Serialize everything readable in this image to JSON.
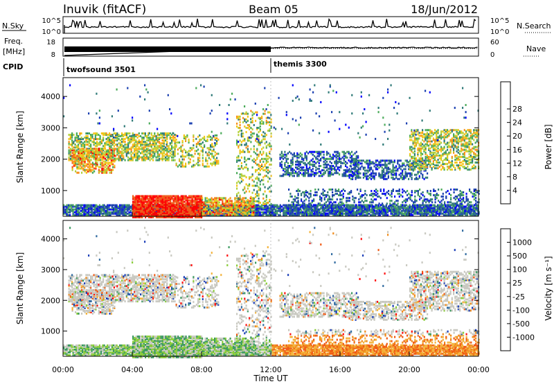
{
  "header": {
    "station": "Inuvik (fitACF)",
    "beam": "Beam 05",
    "date": "18/Jun/2012"
  },
  "status_panels": {
    "nsky_label": "N.Sky",
    "nsky_ticks": [
      "10^5",
      "10^0"
    ],
    "nsearch_label": "N.Search",
    "nsearch_ticks": [
      "10^5",
      "10^0"
    ],
    "freq_label_1": "Freq.",
    "freq_label_2": "[MHz]",
    "freq_ticks": [
      "18",
      "8"
    ],
    "nave_label": "Nave",
    "nave_ticks": [
      "60",
      "0"
    ],
    "cpid_label": "CPID",
    "cpid_programs": [
      {
        "name": "twofsound 3501",
        "start": "00:00"
      },
      {
        "name": "themis 3300",
        "start": "12:00"
      }
    ]
  },
  "chart_data": [
    {
      "type": "heatmap",
      "title": "",
      "ylabel": "Slant Range [km]",
      "xlabel": "",
      "xlim": [
        0,
        24
      ],
      "ylim": [
        180,
        4600
      ],
      "yticks": [
        "1000",
        "2000",
        "3000",
        "4000"
      ],
      "colorbar_label": "Power [dB]",
      "colorbar_ticks": [
        "4",
        "8",
        "12",
        "16",
        "20",
        "24",
        "28"
      ],
      "colors": [
        "#0000ff",
        "#1a3fb0",
        "#2f7a78",
        "#4bab5a",
        "#b5d13a",
        "#f5c516",
        "#f7901a",
        "#f05a18",
        "#ff0000"
      ]
    },
    {
      "type": "heatmap",
      "title": "",
      "ylabel": "Slant Range [km]",
      "xlabel": "Time UT",
      "xlim": [
        0,
        24
      ],
      "ylim": [
        180,
        4600
      ],
      "yticks": [
        "1000",
        "2000",
        "3000",
        "4000"
      ],
      "xticks": [
        "00:00",
        "04:00",
        "08:00",
        "12:00",
        "16:00",
        "20:00",
        "00:00"
      ],
      "colorbar_label": "Velocity [m s⁻¹]",
      "colorbar_ticks": [
        "1000",
        "500",
        "100",
        "25",
        "-25",
        "-100",
        "-500",
        "-1000"
      ],
      "colors": [
        "#1c3fb8",
        "#2f6aa0",
        "#3c9a60",
        "#8acd3a",
        "#c8c8c0",
        "#f4b43c",
        "#f08c1c",
        "#f05a14",
        "#ff1010"
      ]
    }
  ]
}
